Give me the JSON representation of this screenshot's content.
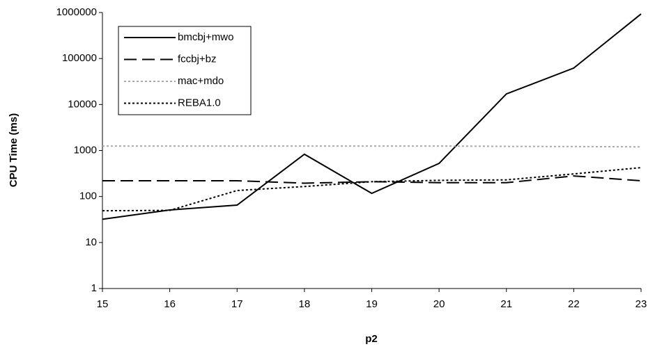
{
  "chart_data": {
    "type": "line",
    "x_label": "p2",
    "y_label": "CPU Time (ms)",
    "x": [
      15,
      16,
      17,
      18,
      19,
      20,
      21,
      22,
      23
    ],
    "xlim": [
      15,
      23
    ],
    "xticks": [
      15,
      16,
      17,
      18,
      19,
      20,
      21,
      22,
      23
    ],
    "ylim": [
      1,
      1000000
    ],
    "yticks": [
      1,
      10,
      100,
      1000,
      10000,
      100000,
      1000000
    ],
    "yscale": "log",
    "grid": false,
    "legend": "upper left",
    "series": [
      {
        "name": "bmcbj+mwo",
        "color": "#000000",
        "style": "solid",
        "values": [
          32,
          51,
          65,
          830,
          117,
          525,
          17000,
          62000,
          930000
        ]
      },
      {
        "name": "fccbj+bz",
        "color": "#000000",
        "style": "dashed",
        "values": [
          220,
          220,
          220,
          195,
          210,
          200,
          200,
          280,
          220
        ]
      },
      {
        "name": "mac+mdo",
        "color": "#aaaaaa",
        "style": "dotted",
        "values": [
          1250,
          1250,
          1250,
          1250,
          1250,
          1250,
          1230,
          1220,
          1200
        ]
      },
      {
        "name": "REBA1.0",
        "color": "#000000",
        "style": "dotted",
        "values": [
          49,
          50,
          135,
          165,
          210,
          225,
          230,
          310,
          425
        ]
      }
    ]
  }
}
